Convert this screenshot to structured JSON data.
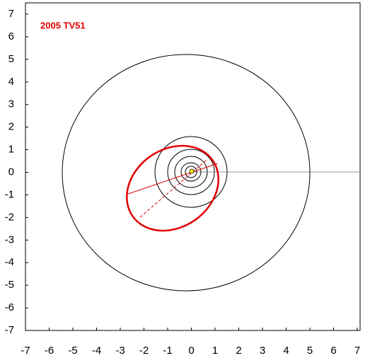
{
  "chart_data": {
    "type": "orbit",
    "title": "2005 TV51",
    "xlim": [
      -7,
      7
    ],
    "ylim": [
      -7,
      7
    ],
    "xticks": [
      -7,
      -6,
      -5,
      -4,
      -3,
      -2,
      -1,
      0,
      1,
      2,
      3,
      4,
      5,
      6,
      7
    ],
    "yticks": [
      -7,
      -6,
      -5,
      -4,
      -3,
      -2,
      -1,
      0,
      1,
      2,
      3,
      4,
      5,
      6,
      7
    ]
  }
}
